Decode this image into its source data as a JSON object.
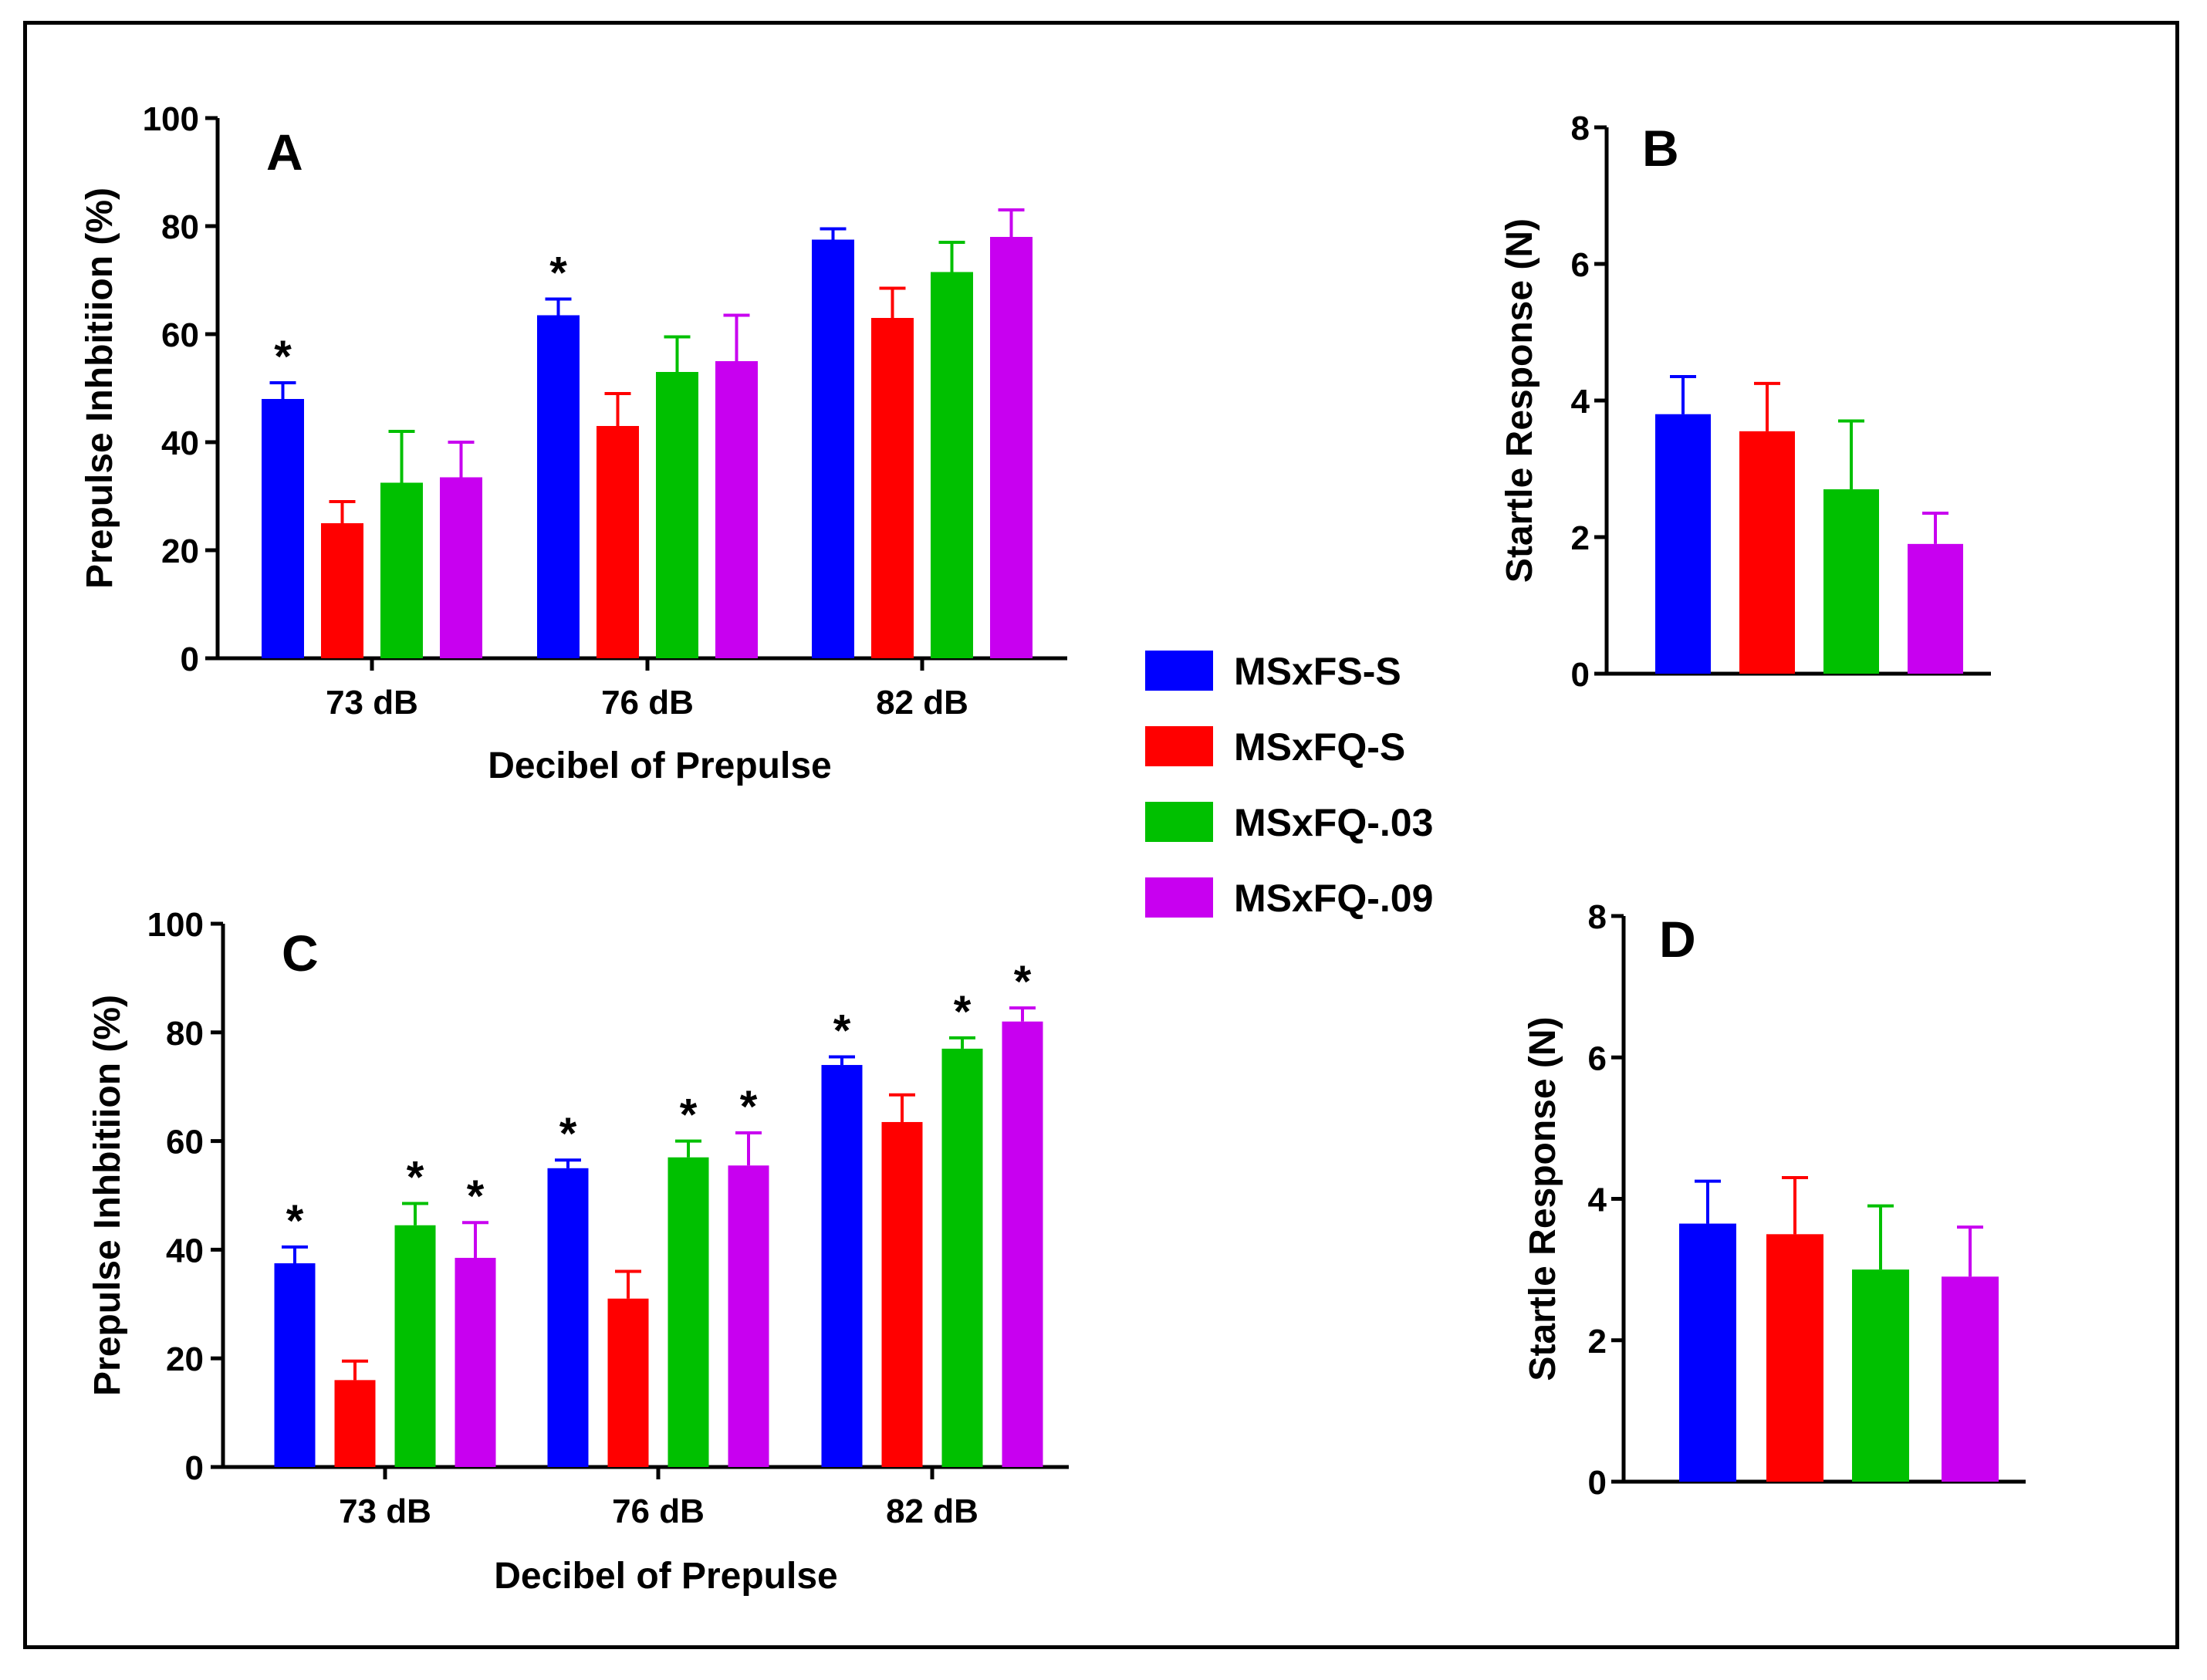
{
  "colors": {
    "MSxFS-S": "#0000ff",
    "MSxFQ-S": "#ff0000",
    "MSxFQ-.03": "#00c000",
    "MSxFQ-.09": "#c800f0"
  },
  "legend": {
    "items": [
      "MSxFS-S",
      "MSxFQ-S",
      "MSxFQ-.03",
      "MSxFQ-.09"
    ]
  },
  "chart_data": [
    {
      "panel": "A",
      "type": "bar",
      "xlabel": "Decibel of Prepulse",
      "ylabel": "Prepulse Inhbitiion (%)",
      "ylim": [
        0,
        100
      ],
      "yticks": [
        "0",
        "20",
        "40",
        "60",
        "80",
        "100"
      ],
      "categories": [
        "73 dB",
        "76 dB",
        "82 dB"
      ],
      "series": [
        {
          "name": "MSxFS-S",
          "values": [
            48,
            63.5,
            77.5
          ],
          "errors": [
            3,
            3,
            2
          ],
          "sig": [
            true,
            true,
            false
          ]
        },
        {
          "name": "MSxFQ-S",
          "values": [
            25,
            43,
            63
          ],
          "errors": [
            4,
            6,
            5.5
          ],
          "sig": [
            false,
            false,
            false
          ]
        },
        {
          "name": "MSxFQ-.03",
          "values": [
            32.5,
            53,
            71.5
          ],
          "errors": [
            9.5,
            6.5,
            5.5
          ],
          "sig": [
            false,
            false,
            false
          ]
        },
        {
          "name": "MSxFQ-.09",
          "values": [
            33.5,
            55,
            78
          ],
          "errors": [
            6.5,
            8.5,
            5
          ],
          "sig": [
            false,
            false,
            false
          ]
        }
      ],
      "sig_marker": "*"
    },
    {
      "panel": "B",
      "type": "bar",
      "ylabel": "Startle Response (N)",
      "ylim": [
        0,
        8
      ],
      "yticks": [
        "0",
        "2",
        "4",
        "6",
        "8"
      ],
      "series": [
        {
          "name": "MSxFS-S",
          "values": [
            3.8
          ],
          "errors": [
            0.55
          ]
        },
        {
          "name": "MSxFQ-S",
          "values": [
            3.55
          ],
          "errors": [
            0.7
          ]
        },
        {
          "name": "MSxFQ-.03",
          "values": [
            2.7
          ],
          "errors": [
            1.0
          ]
        },
        {
          "name": "MSxFQ-.09",
          "values": [
            1.9
          ],
          "errors": [
            0.45
          ]
        }
      ]
    },
    {
      "panel": "C",
      "type": "bar",
      "xlabel": "Decibel of Prepulse",
      "ylabel": "Prepulse Inhbitiion (%)",
      "ylim": [
        0,
        100
      ],
      "yticks": [
        "0",
        "20",
        "40",
        "60",
        "80",
        "100"
      ],
      "categories": [
        "73 dB",
        "76 dB",
        "82 dB"
      ],
      "series": [
        {
          "name": "MSxFS-S",
          "values": [
            37.5,
            55,
            74
          ],
          "errors": [
            3,
            1.5,
            1.5
          ],
          "sig": [
            true,
            true,
            true
          ]
        },
        {
          "name": "MSxFQ-S",
          "values": [
            16,
            31,
            63.5
          ],
          "errors": [
            3.5,
            5,
            5
          ],
          "sig": [
            false,
            false,
            false
          ]
        },
        {
          "name": "MSxFQ-.03",
          "values": [
            44.5,
            57,
            77
          ],
          "errors": [
            4,
            3,
            2
          ],
          "sig": [
            true,
            true,
            true
          ]
        },
        {
          "name": "MSxFQ-.09",
          "values": [
            38.5,
            55.5,
            82
          ],
          "errors": [
            6.5,
            6,
            2.5
          ],
          "sig": [
            true,
            true,
            true
          ]
        }
      ],
      "sig_marker": "*"
    },
    {
      "panel": "D",
      "type": "bar",
      "ylabel": "Startle Response (N)",
      "ylim": [
        0,
        8
      ],
      "yticks": [
        "0",
        "2",
        "4",
        "6",
        "8"
      ],
      "series": [
        {
          "name": "MSxFS-S",
          "values": [
            3.65
          ],
          "errors": [
            0.6
          ]
        },
        {
          "name": "MSxFQ-S",
          "values": [
            3.5
          ],
          "errors": [
            0.8
          ]
        },
        {
          "name": "MSxFQ-.03",
          "values": [
            3.0
          ],
          "errors": [
            0.9
          ]
        },
        {
          "name": "MSxFQ-.09",
          "values": [
            2.9
          ],
          "errors": [
            0.7
          ]
        }
      ]
    }
  ]
}
